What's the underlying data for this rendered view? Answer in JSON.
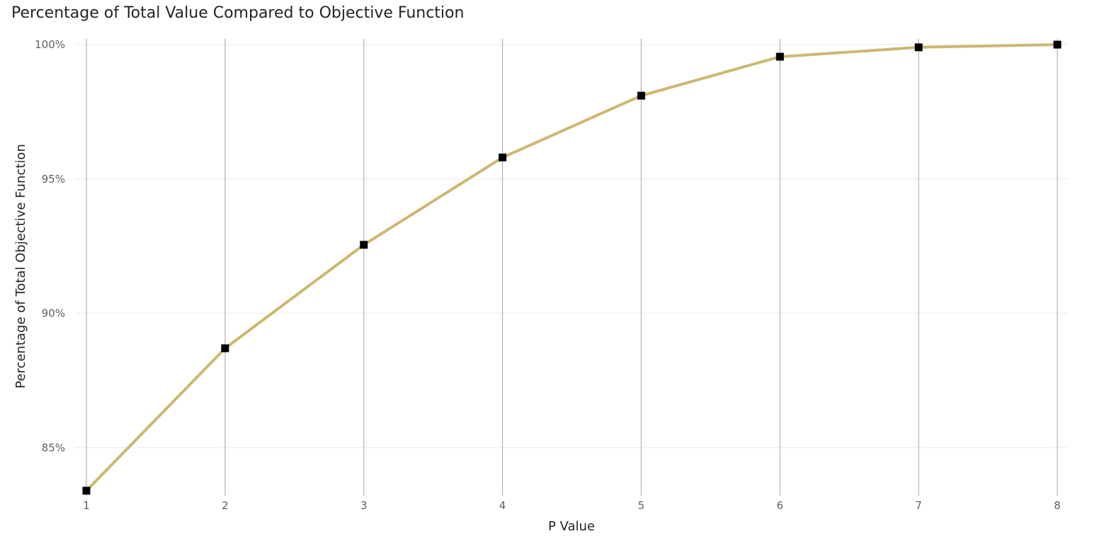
{
  "chart_data": {
    "type": "line",
    "title": "Percentage of Total Value Compared to Objective Function",
    "xlabel": "P Value",
    "ylabel": "Percentage of Total Objective Function",
    "x": [
      1,
      2,
      3,
      4,
      5,
      6,
      7,
      8
    ],
    "x_tick_labels": [
      "1",
      "2",
      "3",
      "4",
      "5",
      "6",
      "7",
      "8"
    ],
    "series": [
      {
        "values": [
          83.4,
          88.7,
          92.55,
          95.8,
          98.1,
          99.55,
          99.9,
          100.0
        ]
      }
    ],
    "ylim": [
      83.4,
      100
    ],
    "y_ticks": [
      85,
      90,
      95,
      100
    ],
    "y_tick_labels": [
      "85%",
      "90%",
      "95%",
      "100%"
    ],
    "y_format": "percent",
    "markers": "square",
    "grid": {
      "vertical": true,
      "horizontal": true
    },
    "colors": {
      "line": "#CCB872",
      "marker": "#000000",
      "vertical_grid": "#B3B3B3",
      "horizontal_grid": "#F0F0F0",
      "tick_label": "#605E5C",
      "title": "#252423"
    }
  }
}
